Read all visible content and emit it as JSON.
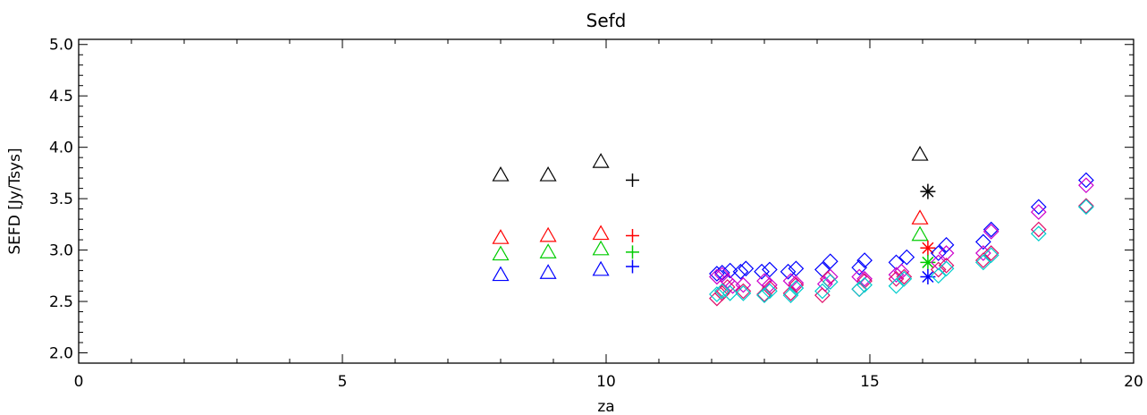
{
  "chart_data": {
    "type": "scatter",
    "title": "Sefd",
    "xlabel": "za",
    "ylabel": "SEFD [Jy/Tsys]",
    "xlim": [
      0,
      20
    ],
    "ylim": [
      1.9,
      5.05
    ],
    "xticks": [
      0,
      5,
      10,
      15,
      20
    ],
    "xtick_labels": [
      "0",
      "5",
      "10",
      "15",
      "20"
    ],
    "yticks": [
      2.0,
      2.5,
      3.0,
      3.5,
      4.0,
      4.5,
      5.0
    ],
    "ytick_labels": [
      "2.0",
      "2.5",
      "3.0",
      "3.5",
      "4.0",
      "4.5",
      "5.0"
    ],
    "grid": false,
    "series": [
      {
        "marker": "triangle",
        "color": "#000000",
        "points": [
          [
            8.0,
            3.73
          ],
          [
            8.9,
            3.73
          ],
          [
            9.9,
            3.86
          ],
          [
            15.95,
            3.93
          ]
        ]
      },
      {
        "marker": "triangle",
        "color": "#ff0000",
        "points": [
          [
            8.0,
            3.12
          ],
          [
            8.9,
            3.14
          ],
          [
            9.9,
            3.16
          ],
          [
            15.95,
            3.31
          ]
        ]
      },
      {
        "marker": "triangle",
        "color": "#00cc00",
        "points": [
          [
            8.0,
            2.96
          ],
          [
            8.9,
            2.98
          ],
          [
            9.9,
            3.01
          ],
          [
            15.95,
            3.15
          ]
        ]
      },
      {
        "marker": "triangle",
        "color": "#0000ff",
        "points": [
          [
            8.0,
            2.76
          ],
          [
            8.9,
            2.78
          ],
          [
            9.9,
            2.81
          ]
        ]
      },
      {
        "marker": "plus",
        "color": "#000000",
        "points": [
          [
            10.5,
            3.68
          ]
        ]
      },
      {
        "marker": "plus",
        "color": "#ff0000",
        "points": [
          [
            10.5,
            3.14
          ]
        ]
      },
      {
        "marker": "plus",
        "color": "#00cc00",
        "points": [
          [
            10.5,
            2.98
          ]
        ]
      },
      {
        "marker": "plus",
        "color": "#0000ff",
        "points": [
          [
            10.5,
            2.84
          ]
        ]
      },
      {
        "marker": "asterisk",
        "color": "#000000",
        "points": [
          [
            16.1,
            3.57
          ]
        ]
      },
      {
        "marker": "asterisk",
        "color": "#ff0000",
        "points": [
          [
            16.1,
            3.02
          ]
        ]
      },
      {
        "marker": "asterisk",
        "color": "#00cc00",
        "points": [
          [
            16.1,
            2.88
          ]
        ]
      },
      {
        "marker": "asterisk",
        "color": "#0000ff",
        "points": [
          [
            16.1,
            2.74
          ]
        ]
      },
      {
        "marker": "diamond",
        "color": "#0000ff",
        "points": [
          [
            12.1,
            2.77
          ],
          [
            12.2,
            2.78
          ],
          [
            12.35,
            2.8
          ],
          [
            12.55,
            2.79
          ],
          [
            12.65,
            2.82
          ],
          [
            12.95,
            2.79
          ],
          [
            13.1,
            2.81
          ],
          [
            13.45,
            2.79
          ],
          [
            13.6,
            2.82
          ],
          [
            14.1,
            2.81
          ],
          [
            14.25,
            2.89
          ],
          [
            14.8,
            2.83
          ],
          [
            14.9,
            2.9
          ],
          [
            15.5,
            2.88
          ],
          [
            15.7,
            2.93
          ],
          [
            16.3,
            2.97
          ],
          [
            16.45,
            3.05
          ],
          [
            17.15,
            3.08
          ],
          [
            17.3,
            3.2
          ],
          [
            18.2,
            3.42
          ],
          [
            19.1,
            3.68
          ]
        ]
      },
      {
        "marker": "diamond",
        "color": "#cc00cc",
        "points": [
          [
            12.1,
            2.74
          ],
          [
            12.2,
            2.76
          ],
          [
            12.3,
            2.7
          ],
          [
            12.4,
            2.65
          ],
          [
            12.6,
            2.66
          ],
          [
            13.0,
            2.7
          ],
          [
            13.1,
            2.66
          ],
          [
            13.5,
            2.7
          ],
          [
            13.6,
            2.68
          ],
          [
            14.15,
            2.67
          ],
          [
            14.25,
            2.74
          ],
          [
            14.8,
            2.74
          ],
          [
            14.9,
            2.72
          ],
          [
            15.5,
            2.76
          ],
          [
            15.6,
            2.79
          ],
          [
            16.3,
            2.88
          ],
          [
            16.45,
            2.97
          ],
          [
            17.15,
            2.97
          ],
          [
            17.3,
            3.18
          ],
          [
            18.2,
            3.37
          ],
          [
            19.1,
            3.63
          ]
        ]
      },
      {
        "marker": "diamond",
        "color": "#e0106a",
        "points": [
          [
            12.1,
            2.53
          ],
          [
            12.2,
            2.58
          ],
          [
            12.3,
            2.64
          ],
          [
            12.6,
            2.6
          ],
          [
            13.0,
            2.57
          ],
          [
            13.1,
            2.63
          ],
          [
            13.5,
            2.58
          ],
          [
            13.6,
            2.66
          ],
          [
            14.1,
            2.56
          ],
          [
            14.2,
            2.72
          ],
          [
            14.8,
            2.62
          ],
          [
            14.9,
            2.7
          ],
          [
            15.5,
            2.72
          ],
          [
            15.65,
            2.74
          ],
          [
            16.3,
            2.81
          ],
          [
            16.45,
            2.85
          ],
          [
            17.15,
            2.9
          ],
          [
            17.3,
            2.97
          ],
          [
            18.2,
            3.2
          ],
          [
            19.1,
            3.43
          ]
        ]
      },
      {
        "marker": "diamond",
        "color": "#00cccc",
        "points": [
          [
            12.1,
            2.57
          ],
          [
            12.2,
            2.6
          ],
          [
            12.35,
            2.58
          ],
          [
            12.6,
            2.58
          ],
          [
            13.0,
            2.56
          ],
          [
            13.1,
            2.6
          ],
          [
            13.5,
            2.56
          ],
          [
            13.6,
            2.63
          ],
          [
            14.1,
            2.6
          ],
          [
            14.25,
            2.69
          ],
          [
            14.8,
            2.62
          ],
          [
            14.9,
            2.66
          ],
          [
            15.5,
            2.65
          ],
          [
            15.65,
            2.72
          ],
          [
            16.3,
            2.75
          ],
          [
            16.45,
            2.82
          ],
          [
            17.15,
            2.88
          ],
          [
            17.3,
            2.95
          ],
          [
            18.2,
            3.16
          ],
          [
            19.1,
            3.42
          ]
        ]
      }
    ]
  }
}
